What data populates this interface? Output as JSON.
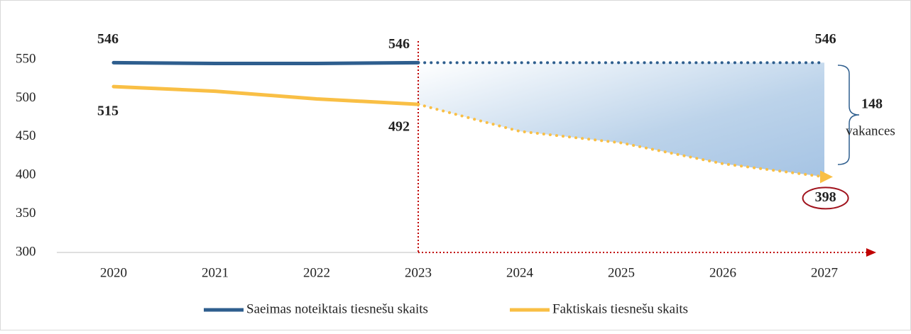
{
  "chart_data": {
    "type": "line",
    "categories": [
      "2020",
      "2021",
      "2022",
      "2023",
      "2024",
      "2025",
      "2026",
      "2027"
    ],
    "forecast_from": "2023",
    "series": [
      {
        "name": "Saeimas noteiktais tiesnešu skaits",
        "color": "#2e5e8e",
        "values": [
          546,
          545,
          545,
          546,
          546,
          546,
          546,
          546
        ],
        "value_labels": [
          "546",
          null,
          null,
          "546",
          null,
          null,
          null,
          "546"
        ]
      },
      {
        "name": "Faktiskais tiesnešu skaits",
        "color": "#f9bf45",
        "values": [
          515,
          509,
          499,
          492,
          457,
          442,
          415,
          398
        ],
        "value_labels": [
          "515",
          null,
          null,
          "492",
          null,
          null,
          null,
          "398"
        ]
      }
    ],
    "ylim": [
      300,
      550
    ],
    "yticks": [
      300,
      350,
      400,
      450,
      500,
      550
    ],
    "annotations": [
      "148",
      "vakances"
    ]
  }
}
